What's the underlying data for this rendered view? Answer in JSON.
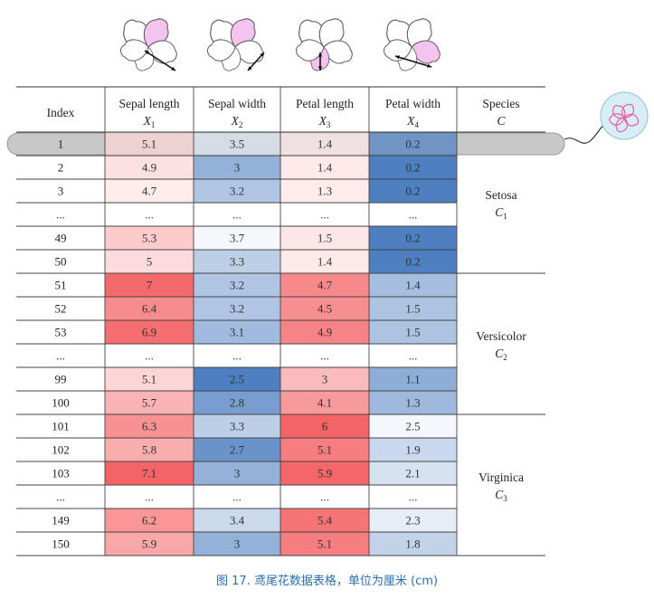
{
  "table": {
    "columns": [
      {
        "label": "Index",
        "symbol": "",
        "sub": ""
      },
      {
        "label": "Sepal length",
        "symbol": "X",
        "sub": "1"
      },
      {
        "label": "Sepal width",
        "symbol": "X",
        "sub": "2"
      },
      {
        "label": "Petal length",
        "symbol": "X",
        "sub": "3"
      },
      {
        "label": "Petal width",
        "symbol": "X",
        "sub": "4"
      },
      {
        "label": "Species",
        "symbol": "C",
        "sub": ""
      }
    ],
    "rows": [
      {
        "index": "1",
        "values": [
          "5.1",
          "3.5",
          "1.4",
          "0.2"
        ],
        "highlighted": true
      },
      {
        "index": "2",
        "values": [
          "4.9",
          "3",
          "1.4",
          "0.2"
        ]
      },
      {
        "index": "3",
        "values": [
          "4.7",
          "3.2",
          "1.3",
          "0.2"
        ]
      },
      {
        "index": "...",
        "values": [
          "...",
          "...",
          "...",
          "..."
        ],
        "ellipsis": true
      },
      {
        "index": "49",
        "values": [
          "5.3",
          "3.7",
          "1.5",
          "0.2"
        ]
      },
      {
        "index": "50",
        "values": [
          "5",
          "3.3",
          "1.4",
          "0.2"
        ]
      },
      {
        "index": "51",
        "values": [
          "7",
          "3.2",
          "4.7",
          "1.4"
        ]
      },
      {
        "index": "52",
        "values": [
          "6.4",
          "3.2",
          "4.5",
          "1.5"
        ]
      },
      {
        "index": "53",
        "values": [
          "6.9",
          "3.1",
          "4.9",
          "1.5"
        ]
      },
      {
        "index": "...",
        "values": [
          "...",
          "...",
          "...",
          "..."
        ],
        "ellipsis": true
      },
      {
        "index": "99",
        "values": [
          "5.1",
          "2.5",
          "3",
          "1.1"
        ]
      },
      {
        "index": "100",
        "values": [
          "5.7",
          "2.8",
          "4.1",
          "1.3"
        ]
      },
      {
        "index": "101",
        "values": [
          "6.3",
          "3.3",
          "6",
          "2.5"
        ]
      },
      {
        "index": "102",
        "values": [
          "5.8",
          "2.7",
          "5.1",
          "1.9"
        ]
      },
      {
        "index": "103",
        "values": [
          "7.1",
          "3",
          "5.9",
          "2.1"
        ]
      },
      {
        "index": "...",
        "values": [
          "...",
          "...",
          "...",
          "..."
        ],
        "ellipsis": true
      },
      {
        "index": "149",
        "values": [
          "6.2",
          "3.4",
          "5.4",
          "2.3"
        ]
      },
      {
        "index": "150",
        "values": [
          "5.9",
          "3",
          "5.1",
          "1.8"
        ]
      }
    ],
    "species_groups": [
      {
        "name": "Setosa",
        "symbol": "C",
        "sub": "1",
        "first_row": 0,
        "last_row": 5
      },
      {
        "name": "Versicolor",
        "symbol": "C",
        "sub": "2",
        "first_row": 6,
        "last_row": 11
      },
      {
        "name": "Virginica",
        "symbol": "C",
        "sub": "3",
        "first_row": 12,
        "last_row": 17
      }
    ],
    "column_colormaps": [
      "red",
      "blue",
      "red",
      "blue"
    ],
    "colors": {
      "red_strong": "#f46366",
      "blue_strong": "#4e7fc0",
      "highlight_bar": "#c8c8c8",
      "highlight_outline": "#9a9a9a",
      "flower_fill": "#f4c4ee",
      "flower_stroke": "#555555",
      "badge_fill": "#d8eef7",
      "badge_flower": "#e85aa8",
      "caption": "#2a6fb0"
    }
  },
  "caption": "图 17. 鸢尾花数据表格，单位为厘米 (cm)"
}
